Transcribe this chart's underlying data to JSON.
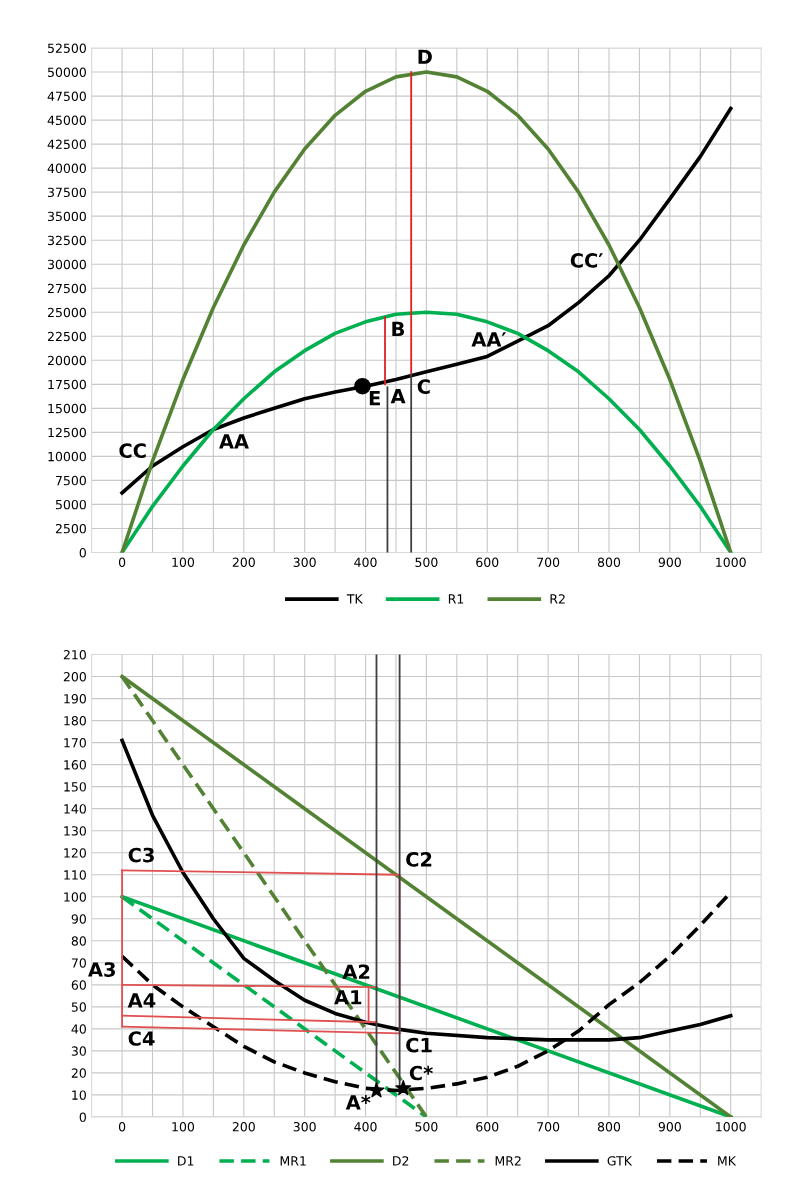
{
  "chart_data": [
    {
      "type": "line",
      "xlim": [
        -50,
        1050
      ],
      "ylim": [
        0,
        52500
      ],
      "xticks": [
        0,
        {
          "value": 50,
          "label": null
        },
        100,
        {
          "value": 150,
          "label": null
        },
        200,
        {
          "value": 250,
          "label": null
        },
        300,
        {
          "value": 350,
          "label": null
        },
        400,
        {
          "value": 450,
          "label": null
        },
        500,
        {
          "value": 550,
          "label": null
        },
        600,
        {
          "value": 650,
          "label": null
        },
        700,
        {
          "value": 750,
          "label": null
        },
        800,
        {
          "value": 850,
          "label": null
        },
        900,
        {
          "value": 950,
          "label": null
        },
        1000
      ],
      "yticks": [
        0,
        2500,
        5000,
        7500,
        10000,
        12500,
        15000,
        17500,
        20000,
        22500,
        25000,
        27500,
        30000,
        32500,
        35000,
        37500,
        40000,
        42500,
        45000,
        47500,
        50000,
        52500
      ],
      "grid": true,
      "legend": "bottom",
      "series": [
        {
          "name": "TK",
          "color": "#000000",
          "x": [
            0,
            50,
            100,
            150,
            200,
            250,
            300,
            350,
            400,
            450,
            500,
            550,
            600,
            650,
            700,
            750,
            800,
            850,
            900,
            950,
            1000
          ],
          "values": [
            6200,
            9000,
            11000,
            12800,
            14000,
            15000,
            16000,
            16700,
            17300,
            18000,
            18800,
            19600,
            20400,
            22000,
            23600,
            26000,
            28800,
            32500,
            36800,
            41200,
            46200
          ]
        },
        {
          "name": "R1",
          "color": "#00b050",
          "x": [
            0,
            50,
            100,
            150,
            200,
            250,
            300,
            350,
            400,
            450,
            500,
            550,
            600,
            650,
            700,
            750,
            800,
            850,
            900,
            950,
            1000
          ],
          "values": [
            0,
            4800,
            9000,
            12800,
            16000,
            18800,
            21000,
            22800,
            24000,
            24800,
            25000,
            24800,
            24000,
            22800,
            21000,
            18800,
            16000,
            12800,
            9000,
            4800,
            0
          ]
        },
        {
          "name": "R2",
          "color": "#548235",
          "x": [
            0,
            50,
            100,
            150,
            200,
            250,
            300,
            350,
            400,
            450,
            500,
            550,
            600,
            650,
            700,
            750,
            800,
            850,
            900,
            950,
            1000
          ],
          "values": [
            0,
            9500,
            18000,
            25500,
            32000,
            37500,
            42000,
            45500,
            48000,
            49500,
            50000,
            49500,
            48000,
            45500,
            42000,
            37500,
            32000,
            25500,
            18000,
            9500,
            0
          ]
        },
        {
          "color": "#e02020",
          "x": [
            432,
            432
          ],
          "values": [
            17500,
            24500
          ]
        },
        {
          "color": "#e02020",
          "x": [
            475,
            475
          ],
          "values": [
            18500,
            50000
          ]
        },
        {
          "color": "#404040",
          "x": [
            436,
            436
          ],
          "values": [
            17200,
            0
          ]
        },
        {
          "color": "#404040",
          "x": [
            475,
            475
          ],
          "values": [
            18500,
            0
          ]
        },
        {
          "type": "scatter",
          "marker": "circle",
          "color": "#000000",
          "x": [
            395
          ],
          "values": [
            17300
          ]
        }
      ],
      "annotations": [
        {
          "text": "CC",
          "x": 50,
          "y": 9000
        },
        {
          "text": "AA",
          "x": 150,
          "y": 12800
        },
        {
          "text": "E",
          "x": 395,
          "y": 17300
        },
        {
          "text": "A",
          "x": 432,
          "y": 17500
        },
        {
          "text": "B",
          "x": 432,
          "y": 24500
        },
        {
          "text": "C",
          "x": 475,
          "y": 18500
        },
        {
          "text": "D",
          "x": 475,
          "y": 50000
        },
        {
          "text": "AA′",
          "x": 650,
          "y": 22000
        },
        {
          "text": "CC′",
          "x": 800,
          "y": 28800
        }
      ]
    },
    {
      "type": "line",
      "xlim": [
        -50,
        1050
      ],
      "ylim": [
        0,
        210
      ],
      "xticks": [
        0,
        {
          "value": 50,
          "label": null
        },
        100,
        {
          "value": 150,
          "label": null
        },
        200,
        {
          "value": 250,
          "label": null
        },
        300,
        {
          "value": 350,
          "label": null
        },
        400,
        {
          "value": 450,
          "label": null
        },
        500,
        {
          "value": 550,
          "label": null
        },
        600,
        {
          "value": 650,
          "label": null
        },
        700,
        {
          "value": 750,
          "label": null
        },
        800,
        {
          "value": 850,
          "label": null
        },
        900,
        {
          "value": 950,
          "label": null
        },
        1000
      ],
      "yticks": [
        0,
        10,
        20,
        30,
        40,
        50,
        60,
        70,
        80,
        90,
        100,
        110,
        120,
        130,
        140,
        150,
        160,
        170,
        180,
        190,
        200,
        210
      ],
      "grid": true,
      "legend": "bottom",
      "series": [
        {
          "name": "D1",
          "color": "#00b050",
          "x": [
            0,
            1000
          ],
          "values": [
            100,
            0
          ]
        },
        {
          "name": "MR1",
          "color": "#00b050",
          "line_style": "dashed",
          "x": [
            0,
            500
          ],
          "values": [
            100,
            0
          ]
        },
        {
          "name": "D2",
          "color": "#548235",
          "x": [
            0,
            1000
          ],
          "values": [
            200,
            0
          ]
        },
        {
          "name": "MR2",
          "color": "#548235",
          "line_style": "dashed",
          "x": [
            0,
            500
          ],
          "values": [
            200,
            0
          ]
        },
        {
          "name": "GTK",
          "color": "#000000",
          "x": [
            0,
            50,
            100,
            150,
            200,
            250,
            300,
            350,
            400,
            450,
            500,
            600,
            700,
            800,
            850,
            900,
            950,
            1000
          ],
          "values": [
            171,
            137,
            111,
            90,
            72,
            62,
            53,
            47,
            43,
            40,
            38,
            36,
            35,
            35,
            36,
            39,
            42,
            46
          ]
        },
        {
          "name": "MK",
          "color": "#000000",
          "line_style": "dashed",
          "x": [
            0,
            50,
            100,
            150,
            200,
            250,
            300,
            350,
            400,
            450,
            500,
            550,
            600,
            650,
            700,
            750,
            800,
            850,
            900,
            950,
            1000
          ],
          "values": [
            73,
            60,
            50,
            41,
            32,
            25,
            20,
            16,
            13,
            12,
            13,
            15,
            18,
            23,
            30,
            39,
            51,
            61,
            73,
            87,
            102
          ]
        },
        {
          "color": "#e05050",
          "x": [
            0,
            456,
            456
          ],
          "values": [
            112,
            110,
            38
          ]
        },
        {
          "color": "#e05050",
          "x": [
            0,
            0
          ],
          "values": [
            112,
            41
          ]
        },
        {
          "color": "#e05050",
          "x": [
            0,
            418
          ],
          "values": [
            60,
            59
          ]
        },
        {
          "color": "#e05050",
          "x": [
            0,
            418
          ],
          "values": [
            46,
            43
          ]
        },
        {
          "color": "#e05050",
          "x": [
            0,
            456
          ],
          "values": [
            41,
            38
          ]
        },
        {
          "color": "#e05050",
          "x": [
            405,
            405
          ],
          "values": [
            59,
            43
          ]
        },
        {
          "color": "#404040",
          "x": [
            418,
            418
          ],
          "values": [
            210,
            12
          ]
        },
        {
          "color": "#404040",
          "x": [
            456,
            456
          ],
          "values": [
            210,
            13
          ]
        },
        {
          "type": "scatter",
          "marker": "star",
          "color": "#000000",
          "x": [
            418,
            462
          ],
          "values": [
            12,
            13
          ]
        }
      ],
      "annotations": [
        {
          "text": "C3",
          "x": 0,
          "y": 112
        },
        {
          "text": "C2",
          "x": 456,
          "y": 110
        },
        {
          "text": "A3",
          "x": 0,
          "y": 60
        },
        {
          "text": "A4",
          "x": 0,
          "y": 46
        },
        {
          "text": "C4",
          "x": 0,
          "y": 41
        },
        {
          "text": "A2",
          "x": 418,
          "y": 59
        },
        {
          "text": "A1",
          "x": 418,
          "y": 43
        },
        {
          "text": "C1",
          "x": 456,
          "y": 38
        },
        {
          "text": "A*",
          "x": 418,
          "y": 12
        },
        {
          "text": "C*",
          "x": 462,
          "y": 13
        }
      ]
    }
  ]
}
